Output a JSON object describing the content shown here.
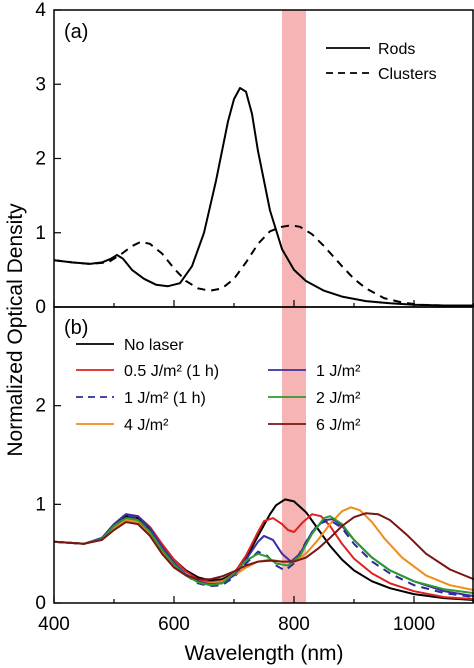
{
  "chart_data": {
    "type": "line",
    "xlabel": "Wavelength (nm)",
    "ylabel": "Normalized Optical Density",
    "xlim": [
      400,
      1100
    ],
    "x_ticks": [
      "400",
      "600",
      "800",
      "1000"
    ],
    "laser_band_nm": [
      780,
      820
    ],
    "laser_band_color": "#f4a7a7",
    "panels": [
      {
        "label": "(a)",
        "ylim": [
          0,
          4
        ],
        "y_ticks": [
          "0",
          "1",
          "2",
          "3",
          "4"
        ],
        "legend_position": "top-right",
        "series": [
          {
            "name": "Rods",
            "color": "#000000",
            "dash": "solid",
            "x": [
              400,
              430,
              460,
              480,
              495,
              505,
              515,
              530,
              550,
              570,
              590,
              610,
              630,
              650,
              670,
              690,
              700,
              710,
              720,
              730,
              740,
              760,
              780,
              800,
              820,
              850,
              880,
              920,
              960,
              1000,
              1050,
              1100
            ],
            "y": [
              0.63,
              0.6,
              0.58,
              0.6,
              0.65,
              0.7,
              0.65,
              0.5,
              0.38,
              0.3,
              0.28,
              0.32,
              0.55,
              1.0,
              1.7,
              2.5,
              2.8,
              2.95,
              2.9,
              2.6,
              2.1,
              1.3,
              0.78,
              0.5,
              0.35,
              0.22,
              0.14,
              0.08,
              0.05,
              0.03,
              0.02,
              0.02
            ]
          },
          {
            "name": "Clusters",
            "color": "#000000",
            "dash": "dashed",
            "x": [
              400,
              430,
              460,
              490,
              510,
              530,
              545,
              560,
              580,
              600,
              620,
              640,
              660,
              680,
              700,
              720,
              740,
              760,
              780,
              795,
              810,
              830,
              850,
              880,
              900,
              920,
              950,
              980,
              1010,
              1050,
              1100
            ],
            "y": [
              0.63,
              0.6,
              0.58,
              0.6,
              0.7,
              0.82,
              0.88,
              0.85,
              0.72,
              0.52,
              0.35,
              0.25,
              0.22,
              0.25,
              0.38,
              0.6,
              0.85,
              1.02,
              1.08,
              1.1,
              1.08,
              0.98,
              0.82,
              0.55,
              0.38,
              0.25,
              0.12,
              0.06,
              0.03,
              0.02,
              0.02
            ]
          }
        ]
      },
      {
        "label": "(b)",
        "ylim": [
          0,
          3
        ],
        "y_ticks": [
          "0",
          "1",
          "2"
        ],
        "legend_position": "top-left",
        "series": [
          {
            "name": "No laser",
            "color": "#000000",
            "dash": "solid",
            "x": [
              400,
              450,
              480,
              500,
              520,
              540,
              560,
              580,
              600,
              620,
              640,
              660,
              680,
              700,
              720,
              740,
              760,
              770,
              785,
              800,
              820,
              840,
              860,
              880,
              900,
              930,
              960,
              1000,
              1050,
              1100
            ],
            "y": [
              0.62,
              0.6,
              0.65,
              0.78,
              0.88,
              0.86,
              0.75,
              0.58,
              0.44,
              0.33,
              0.26,
              0.23,
              0.24,
              0.3,
              0.45,
              0.68,
              0.9,
              0.99,
              1.05,
              1.03,
              0.92,
              0.75,
              0.58,
              0.44,
              0.33,
              0.22,
              0.15,
              0.09,
              0.05,
              0.03
            ]
          },
          {
            "name": "0.5 J/m² (1 h)",
            "color": "#e02020",
            "dash": "solid",
            "x": [
              400,
              450,
              480,
              500,
              520,
              540,
              560,
              580,
              600,
              620,
              640,
              660,
              680,
              700,
              720,
              740,
              750,
              765,
              780,
              790,
              800,
              815,
              830,
              845,
              860,
              880,
              900,
              930,
              960,
              1000,
              1050,
              1100
            ],
            "y": [
              0.62,
              0.6,
              0.66,
              0.8,
              0.9,
              0.88,
              0.77,
              0.6,
              0.44,
              0.32,
              0.24,
              0.21,
              0.22,
              0.3,
              0.48,
              0.72,
              0.83,
              0.86,
              0.8,
              0.74,
              0.72,
              0.82,
              0.9,
              0.88,
              0.78,
              0.6,
              0.45,
              0.3,
              0.2,
              0.12,
              0.06,
              0.04
            ]
          },
          {
            "name": "1 J/m² (1 h)",
            "color": "#2b2b9a",
            "dash": "dashed",
            "x": [
              400,
              450,
              480,
              500,
              520,
              540,
              560,
              580,
              600,
              620,
              640,
              660,
              680,
              700,
              720,
              740,
              755,
              770,
              785,
              800,
              820,
              840,
              860,
              880,
              900,
              930,
              960,
              1000,
              1050,
              1100
            ],
            "y": [
              0.62,
              0.6,
              0.66,
              0.8,
              0.88,
              0.86,
              0.74,
              0.56,
              0.4,
              0.28,
              0.2,
              0.17,
              0.18,
              0.26,
              0.4,
              0.52,
              0.48,
              0.38,
              0.33,
              0.4,
              0.62,
              0.8,
              0.84,
              0.76,
              0.6,
              0.42,
              0.3,
              0.18,
              0.1,
              0.06
            ]
          },
          {
            "name": "4 J/m²",
            "color": "#f08c1a",
            "dash": "solid",
            "x": [
              400,
              450,
              480,
              500,
              520,
              540,
              560,
              580,
              600,
              620,
              640,
              660,
              680,
              700,
              720,
              740,
              760,
              780,
              800,
              820,
              840,
              860,
              880,
              895,
              910,
              930,
              950,
              980,
              1020,
              1060,
              1100
            ],
            "y": [
              0.62,
              0.6,
              0.65,
              0.76,
              0.84,
              0.82,
              0.7,
              0.52,
              0.38,
              0.28,
              0.22,
              0.2,
              0.22,
              0.28,
              0.36,
              0.42,
              0.44,
              0.42,
              0.42,
              0.5,
              0.64,
              0.8,
              0.93,
              0.97,
              0.94,
              0.82,
              0.66,
              0.46,
              0.28,
              0.18,
              0.13
            ]
          },
          {
            "name": "1 J/m²",
            "color": "#3a2fa0",
            "dash": "solid",
            "x": [
              400,
              450,
              480,
              500,
              520,
              540,
              560,
              580,
              600,
              620,
              640,
              660,
              680,
              700,
              720,
              740,
              750,
              765,
              780,
              795,
              810,
              830,
              850,
              865,
              880,
              900,
              930,
              960,
              1000,
              1050,
              1100
            ],
            "y": [
              0.62,
              0.6,
              0.66,
              0.8,
              0.9,
              0.88,
              0.76,
              0.57,
              0.41,
              0.29,
              0.22,
              0.19,
              0.2,
              0.28,
              0.44,
              0.62,
              0.68,
              0.64,
              0.5,
              0.42,
              0.5,
              0.72,
              0.84,
              0.85,
              0.78,
              0.64,
              0.46,
              0.33,
              0.22,
              0.12,
              0.07
            ]
          },
          {
            "name": "2 J/m²",
            "color": "#2e9a2e",
            "dash": "solid",
            "x": [
              400,
              450,
              480,
              500,
              520,
              540,
              560,
              580,
              600,
              620,
              640,
              660,
              680,
              700,
              720,
              740,
              755,
              770,
              790,
              810,
              830,
              850,
              860,
              880,
              900,
              930,
              960,
              1000,
              1050,
              1100
            ],
            "y": [
              0.62,
              0.6,
              0.65,
              0.78,
              0.86,
              0.84,
              0.72,
              0.54,
              0.39,
              0.28,
              0.21,
              0.18,
              0.2,
              0.3,
              0.43,
              0.5,
              0.47,
              0.4,
              0.38,
              0.48,
              0.7,
              0.86,
              0.88,
              0.8,
              0.64,
              0.46,
              0.33,
              0.22,
              0.14,
              0.1
            ]
          },
          {
            "name": "6 J/m²",
            "color": "#7a1515",
            "dash": "solid",
            "x": [
              400,
              450,
              480,
              500,
              520,
              540,
              560,
              580,
              600,
              620,
              640,
              660,
              680,
              700,
              720,
              740,
              760,
              780,
              800,
              820,
              840,
              860,
              880,
              900,
              920,
              940,
              960,
              990,
              1020,
              1060,
              1100
            ],
            "y": [
              0.62,
              0.6,
              0.64,
              0.74,
              0.82,
              0.8,
              0.68,
              0.5,
              0.36,
              0.28,
              0.24,
              0.24,
              0.27,
              0.32,
              0.38,
              0.42,
              0.43,
              0.42,
              0.42,
              0.46,
              0.55,
              0.66,
              0.78,
              0.87,
              0.91,
              0.9,
              0.84,
              0.68,
              0.5,
              0.34,
              0.24
            ]
          }
        ]
      }
    ]
  }
}
